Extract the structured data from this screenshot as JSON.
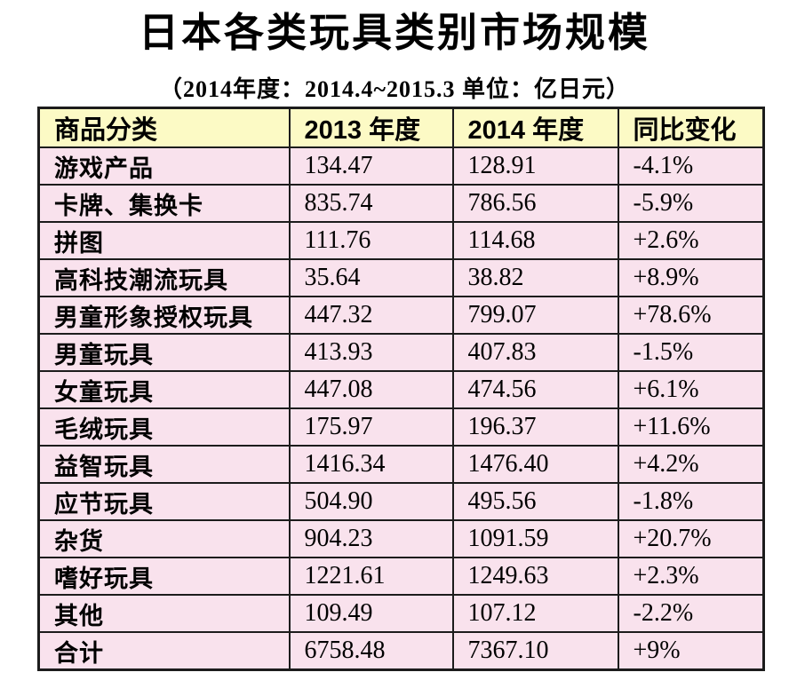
{
  "title": "日本各类玩具类别市场规模",
  "subtitle": "（2014年度：2014.4~2015.3  单位：亿日元）",
  "colors": {
    "header_bg": "#fcfac5",
    "row_bg": "#f9e2ed",
    "border": "#1c1c1c",
    "text": "#000000",
    "page_bg": "#ffffff"
  },
  "chart_data": {
    "type": "table",
    "title": "日本各类玩具类别市场规模",
    "subtitle": "（2014年度：2014.4~2015.3  单位：亿日元）",
    "unit": "亿日元",
    "period": "2014.4~2015.3",
    "columns": [
      "商品分类",
      "2013 年度",
      "2014 年度",
      "同比变化"
    ],
    "rows": [
      [
        "游戏产品",
        "134.47",
        "128.91",
        "-4.1%"
      ],
      [
        "卡牌、集换卡",
        "835.74",
        "786.56",
        "-5.9%"
      ],
      [
        "拼图",
        "111.76",
        "114.68",
        "+2.6%"
      ],
      [
        "高科技潮流玩具",
        "35.64",
        "38.82",
        "+8.9%"
      ],
      [
        "男童形象授权玩具",
        "447.32",
        "799.07",
        "+78.6%"
      ],
      [
        "男童玩具",
        "413.93",
        "407.83",
        "-1.5%"
      ],
      [
        "女童玩具",
        "447.08",
        "474.56",
        "+6.1%"
      ],
      [
        "毛绒玩具",
        "175.97",
        "196.37",
        "+11.6%"
      ],
      [
        "益智玩具",
        "1416.34",
        "1476.40",
        "+4.2%"
      ],
      [
        "应节玩具",
        "504.90",
        "495.56",
        "-1.8%"
      ],
      [
        "杂货",
        "904.23",
        "1091.59",
        "+20.7%"
      ],
      [
        "嗜好玩具",
        "1221.61",
        "1249.63",
        "+2.3%"
      ],
      [
        "其他",
        "109.49",
        "107.12",
        "-2.2%"
      ],
      [
        "合计",
        "6758.48",
        "7367.10",
        "+9%"
      ]
    ]
  }
}
